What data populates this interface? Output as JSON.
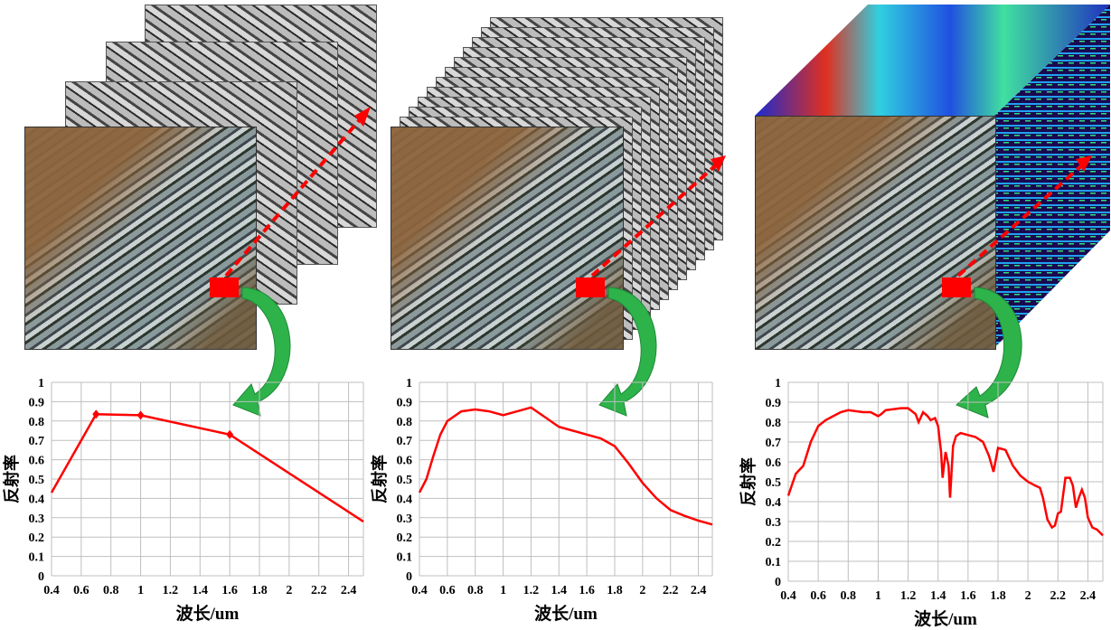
{
  "panels": [
    {
      "name": "multispectral",
      "layers": 4
    },
    {
      "name": "hyperspectral-stack",
      "layers": 12
    },
    {
      "name": "hyperspectral-cube",
      "layers": 1
    }
  ],
  "colors": {
    "curve": "#ff0000",
    "arrow_green": "#2db34a",
    "dashed_arrow": "#ff0000",
    "grid": "#bfbfbf"
  },
  "chart_data": [
    {
      "type": "line",
      "title": "",
      "xlabel": "波长/um",
      "ylabel": "反射率",
      "xlim": [
        0.4,
        2.5
      ],
      "ylim": [
        0,
        1
      ],
      "grid": true,
      "xticks": [
        "0.4",
        "0.6",
        "0.8",
        "1",
        "1.2",
        "1.4",
        "1.6",
        "1.8",
        "2",
        "2.2",
        "2.4"
      ],
      "yticks": [
        "0",
        "0.1",
        "0.2",
        "0.3",
        "0.4",
        "0.5",
        "0.6",
        "0.7",
        "0.8",
        "0.9",
        "1"
      ],
      "x": [
        0.4,
        0.7,
        1.0,
        1.6,
        2.5
      ],
      "y": [
        0.43,
        0.835,
        0.83,
        0.73,
        0.28
      ],
      "markers": [
        1,
        2,
        3
      ]
    },
    {
      "type": "line",
      "title": "",
      "xlabel": "波长/um",
      "ylabel": "反射率",
      "xlim": [
        0.4,
        2.5
      ],
      "ylim": [
        0,
        1
      ],
      "grid": true,
      "xticks": [
        "0.4",
        "0.6",
        "0.8",
        "1",
        "1.2",
        "1.4",
        "1.6",
        "1.8",
        "2",
        "2.2",
        "2.4"
      ],
      "yticks": [
        "0",
        "0.1",
        "0.2",
        "0.3",
        "0.4",
        "0.5",
        "0.6",
        "0.7",
        "0.8",
        "0.9",
        "1"
      ],
      "x": [
        0.4,
        0.45,
        0.5,
        0.55,
        0.6,
        0.7,
        0.8,
        0.9,
        1.0,
        1.1,
        1.2,
        1.3,
        1.4,
        1.5,
        1.6,
        1.7,
        1.8,
        1.9,
        2.0,
        2.1,
        2.2,
        2.3,
        2.4,
        2.5
      ],
      "y": [
        0.43,
        0.5,
        0.62,
        0.73,
        0.8,
        0.85,
        0.86,
        0.85,
        0.83,
        0.85,
        0.87,
        0.82,
        0.77,
        0.75,
        0.73,
        0.71,
        0.67,
        0.58,
        0.48,
        0.4,
        0.34,
        0.31,
        0.285,
        0.265
      ]
    },
    {
      "type": "line",
      "title": "",
      "xlabel": "波长/um",
      "ylabel": "反射率",
      "xlim": [
        0.4,
        2.5
      ],
      "ylim": [
        0,
        1
      ],
      "grid": true,
      "xticks": [
        "0.4",
        "0.6",
        "0.8",
        "1",
        "1.2",
        "1.4",
        "1.6",
        "1.8",
        "2",
        "2.2",
        "2.4"
      ],
      "yticks": [
        "0",
        "0.1",
        "0.2",
        "0.3",
        "0.4",
        "0.5",
        "0.6",
        "0.7",
        "0.8",
        "0.9",
        "1"
      ],
      "x": [
        0.4,
        0.45,
        0.5,
        0.55,
        0.6,
        0.65,
        0.7,
        0.75,
        0.8,
        0.9,
        0.95,
        1.0,
        1.02,
        1.05,
        1.1,
        1.15,
        1.2,
        1.25,
        1.27,
        1.3,
        1.33,
        1.35,
        1.38,
        1.4,
        1.42,
        1.43,
        1.45,
        1.47,
        1.48,
        1.5,
        1.52,
        1.55,
        1.6,
        1.65,
        1.7,
        1.74,
        1.77,
        1.8,
        1.85,
        1.9,
        1.95,
        2.0,
        2.05,
        2.08,
        2.1,
        2.13,
        2.16,
        2.18,
        2.2,
        2.22,
        2.25,
        2.28,
        2.3,
        2.32,
        2.34,
        2.36,
        2.38,
        2.4,
        2.43,
        2.46,
        2.5
      ],
      "y": [
        0.43,
        0.54,
        0.58,
        0.7,
        0.78,
        0.81,
        0.83,
        0.85,
        0.86,
        0.85,
        0.85,
        0.83,
        0.84,
        0.86,
        0.865,
        0.87,
        0.87,
        0.84,
        0.8,
        0.85,
        0.83,
        0.81,
        0.82,
        0.78,
        0.65,
        0.52,
        0.65,
        0.58,
        0.42,
        0.68,
        0.73,
        0.745,
        0.735,
        0.725,
        0.7,
        0.63,
        0.55,
        0.67,
        0.66,
        0.58,
        0.53,
        0.5,
        0.48,
        0.47,
        0.42,
        0.31,
        0.27,
        0.28,
        0.34,
        0.35,
        0.52,
        0.52,
        0.48,
        0.37,
        0.42,
        0.46,
        0.42,
        0.32,
        0.27,
        0.26,
        0.23
      ]
    }
  ]
}
